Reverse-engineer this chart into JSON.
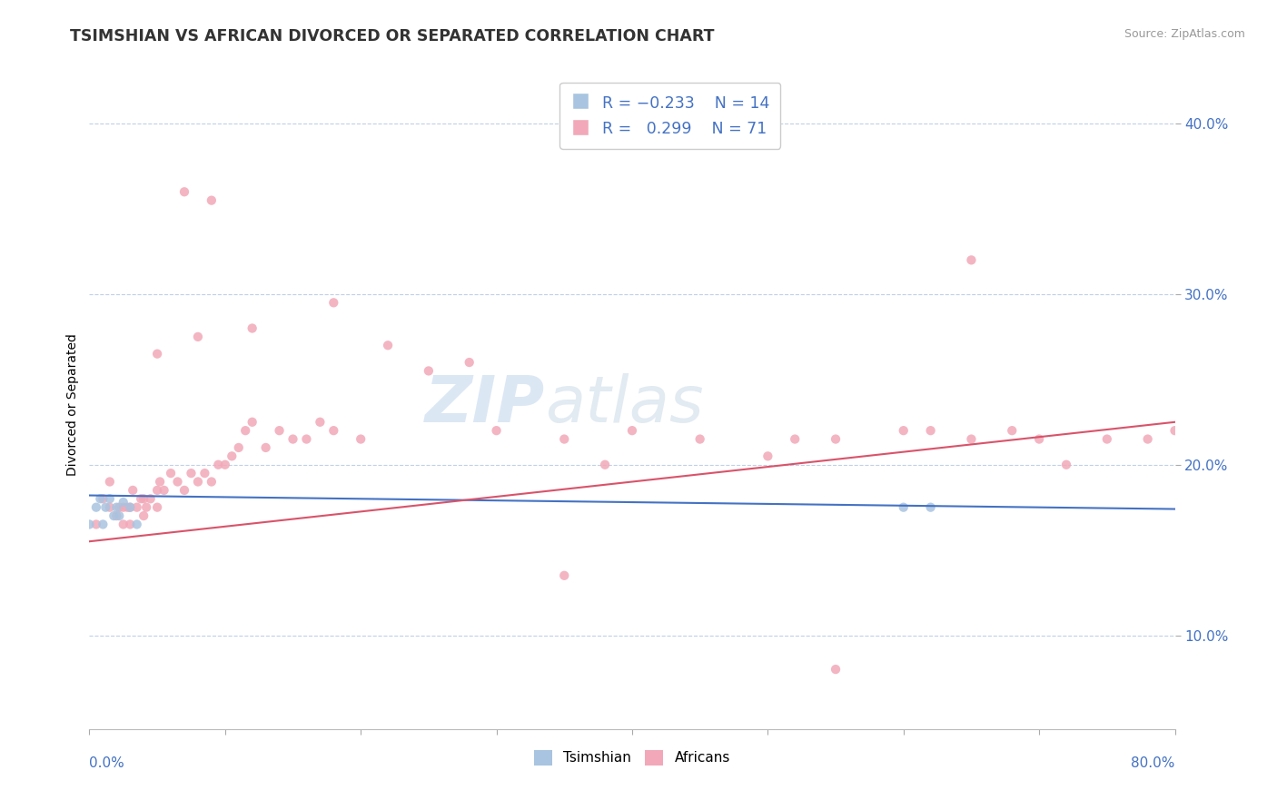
{
  "title": "TSIMSHIAN VS AFRICAN DIVORCED OR SEPARATED CORRELATION CHART",
  "source": "Source: ZipAtlas.com",
  "ylabel": "Divorced or Separated",
  "xmin": 0.0,
  "xmax": 0.8,
  "ymin": 0.045,
  "ymax": 0.425,
  "yticks": [
    0.1,
    0.2,
    0.3,
    0.4
  ],
  "ytick_labels": [
    "10.0%",
    "20.0%",
    "30.0%",
    "40.0%"
  ],
  "watermark_zip": "ZIP",
  "watermark_atlas": "atlas",
  "tsimshian_color": "#a8c4e0",
  "african_color": "#f2a8b8",
  "tsimshian_line_color": "#4472c4",
  "african_line_color": "#d9536a",
  "tsimshian_x": [
    0.0,
    0.005,
    0.008,
    0.01,
    0.012,
    0.015,
    0.018,
    0.02,
    0.022,
    0.025,
    0.03,
    0.035,
    0.6,
    0.62
  ],
  "tsimshian_y": [
    0.165,
    0.175,
    0.18,
    0.165,
    0.175,
    0.18,
    0.17,
    0.175,
    0.17,
    0.178,
    0.175,
    0.165,
    0.175,
    0.175
  ],
  "african_x": [
    0.005,
    0.01,
    0.015,
    0.015,
    0.02,
    0.022,
    0.025,
    0.025,
    0.028,
    0.03,
    0.03,
    0.032,
    0.035,
    0.038,
    0.04,
    0.04,
    0.042,
    0.045,
    0.05,
    0.05,
    0.052,
    0.055,
    0.06,
    0.065,
    0.07,
    0.075,
    0.08,
    0.085,
    0.09,
    0.095,
    0.1,
    0.105,
    0.11,
    0.115,
    0.12,
    0.13,
    0.14,
    0.15,
    0.16,
    0.17,
    0.18,
    0.05,
    0.08,
    0.12,
    0.18,
    0.2,
    0.22,
    0.25,
    0.28,
    0.3,
    0.35,
    0.38,
    0.4,
    0.45,
    0.5,
    0.52,
    0.55,
    0.6,
    0.62,
    0.65,
    0.68,
    0.7,
    0.72,
    0.75,
    0.78,
    0.8,
    0.07,
    0.09,
    0.35,
    0.55,
    0.65
  ],
  "african_y": [
    0.165,
    0.18,
    0.175,
    0.19,
    0.17,
    0.175,
    0.165,
    0.175,
    0.175,
    0.165,
    0.175,
    0.185,
    0.175,
    0.18,
    0.17,
    0.18,
    0.175,
    0.18,
    0.175,
    0.185,
    0.19,
    0.185,
    0.195,
    0.19,
    0.185,
    0.195,
    0.19,
    0.195,
    0.19,
    0.2,
    0.2,
    0.205,
    0.21,
    0.22,
    0.225,
    0.21,
    0.22,
    0.215,
    0.215,
    0.225,
    0.22,
    0.265,
    0.275,
    0.28,
    0.295,
    0.215,
    0.27,
    0.255,
    0.26,
    0.22,
    0.215,
    0.2,
    0.22,
    0.215,
    0.205,
    0.215,
    0.215,
    0.22,
    0.22,
    0.215,
    0.22,
    0.215,
    0.2,
    0.215,
    0.215,
    0.22,
    0.36,
    0.355,
    0.135,
    0.08,
    0.32
  ]
}
